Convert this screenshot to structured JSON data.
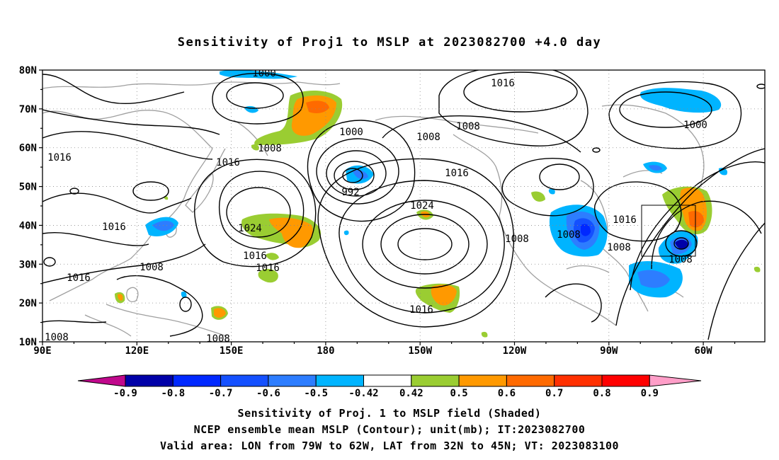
{
  "title": "Sensitivity of Proj1 to MSLP at 2023082700 +4.0 day",
  "lat_labels": [
    "80N",
    "70N",
    "60N",
    "50N",
    "40N",
    "30N",
    "20N",
    "10N"
  ],
  "lon_labels": [
    "90E",
    "120E",
    "150E",
    "180",
    "150W",
    "120W",
    "90W",
    "60W"
  ],
  "contour_labels": {
    "c1000a": "1000",
    "c1016a": "1016",
    "c1008a": "1008",
    "c1016b": "1016",
    "c1008b": "1008",
    "c1016c": "1016",
    "c1000b": "1000",
    "c992": "992",
    "c1008c": "1008",
    "c1016d": "1016",
    "c1024a": "1024",
    "c1024b": "1024",
    "c1008d": "1008",
    "c1016e": "1016",
    "c1008e": "1008",
    "c1008f": "1008",
    "c1016f": "1016",
    "c1016g": "1016",
    "c1008g": "1008",
    "c1016h": "1016",
    "c1016i": "1016",
    "c1008h": "1008",
    "c1008i": "1008",
    "c1000c": "1000",
    "c1008j": "1008"
  },
  "colorbar": {
    "labels": [
      "-0.9",
      "-0.8",
      "-0.7",
      "-0.6",
      "-0.5",
      "-0.42",
      "0.42",
      "0.5",
      "0.6",
      "0.7",
      "0.8",
      "0.9"
    ],
    "colors": {
      "below": "#c0088c",
      "bins": [
        "#0000a8",
        "#0028ff",
        "#1450ff",
        "#2d7dff",
        "#00b4ff",
        "#ffffff",
        "#9acd32",
        "#ff9900",
        "#ff6a00",
        "#ff3000",
        "#ff0000"
      ],
      "above": "#ff9ec8"
    }
  },
  "captions": [
    "Sensitivity of Proj. 1 to MSLP field (Shaded)",
    "NCEP ensemble mean MSLP (Contour); unit(mb); IT:2023082700",
    "Valid area: LON from 79W to 62W, LAT from 32N to 45N; VT: 2023083100"
  ]
}
